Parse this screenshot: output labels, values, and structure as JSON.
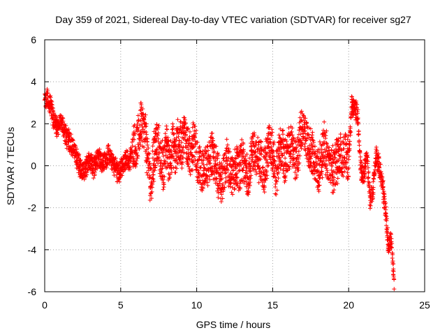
{
  "chart_data": {
    "type": "scatter",
    "title": "Day 359 of 2021, Sidereal Day-to-day VTEC variation (SDTVAR) for receiver sg27",
    "xlabel": "GPS time / hours",
    "ylabel": "SDTVAR / TECUs",
    "xlim": [
      0,
      25
    ],
    "ylim": [
      -6,
      6
    ],
    "xticks": [
      0,
      5,
      10,
      15,
      20,
      25
    ],
    "yticks": [
      -6,
      -4,
      -2,
      0,
      2,
      4,
      6
    ],
    "grid": true,
    "marker": "+",
    "color": "#ff0000",
    "series": [
      {
        "name": "SDTVAR",
        "trend": [
          [
            0.0,
            3.0
          ],
          [
            0.2,
            3.2
          ],
          [
            0.4,
            2.8
          ],
          [
            0.6,
            2.2
          ],
          [
            0.8,
            1.8
          ],
          [
            1.0,
            2.0
          ],
          [
            1.2,
            1.9
          ],
          [
            1.4,
            1.4
          ],
          [
            1.6,
            1.2
          ],
          [
            1.8,
            1.0
          ],
          [
            2.0,
            0.6
          ],
          [
            2.2,
            0.2
          ],
          [
            2.4,
            -0.2
          ],
          [
            2.6,
            -0.3
          ],
          [
            2.8,
            0.0
          ],
          [
            3.0,
            0.2
          ],
          [
            3.2,
            -0.1
          ],
          [
            3.4,
            0.3
          ],
          [
            3.6,
            0.5
          ],
          [
            3.8,
            0.1
          ],
          [
            4.0,
            0.3
          ],
          [
            4.2,
            0.6
          ],
          [
            4.4,
            0.2
          ],
          [
            4.6,
            0.0
          ],
          [
            4.8,
            -0.3
          ],
          [
            5.0,
            -0.2
          ],
          [
            5.2,
            0.1
          ],
          [
            5.4,
            0.4
          ],
          [
            5.6,
            0.2
          ],
          [
            5.8,
            1.0
          ],
          [
            6.0,
            0.8
          ],
          [
            6.2,
            1.4
          ],
          [
            6.4,
            2.2
          ],
          [
            6.6,
            1.5
          ],
          [
            6.8,
            0.2
          ],
          [
            7.0,
            -0.9
          ],
          [
            7.2,
            0.6
          ],
          [
            7.4,
            1.2
          ],
          [
            7.6,
            0.4
          ],
          [
            7.8,
            0.0
          ],
          [
            8.0,
            0.8
          ],
          [
            8.2,
            0.2
          ],
          [
            8.4,
            1.0
          ],
          [
            8.6,
            0.5
          ],
          [
            8.8,
            1.3
          ],
          [
            9.0,
            0.8
          ],
          [
            9.2,
            1.6
          ],
          [
            9.4,
            1.0
          ],
          [
            9.6,
            0.4
          ],
          [
            9.8,
            1.2
          ],
          [
            10.0,
            0.4
          ],
          [
            10.2,
            0.0
          ],
          [
            10.4,
            -0.4
          ],
          [
            10.6,
            0.2
          ],
          [
            10.8,
            0.0
          ],
          [
            11.0,
            0.5
          ],
          [
            11.2,
            0.1
          ],
          [
            11.4,
            -0.6
          ],
          [
            11.6,
            -0.9
          ],
          [
            11.8,
            -0.3
          ],
          [
            12.0,
            0.2
          ],
          [
            12.2,
            -0.2
          ],
          [
            12.4,
            -0.6
          ],
          [
            12.6,
            0.0
          ],
          [
            12.8,
            -0.4
          ],
          [
            13.0,
            0.3
          ],
          [
            13.2,
            -0.1
          ],
          [
            13.4,
            -0.5
          ],
          [
            13.6,
            0.4
          ],
          [
            13.8,
            0.9
          ],
          [
            14.0,
            0.2
          ],
          [
            14.2,
            0.5
          ],
          [
            14.4,
            -0.3
          ],
          [
            14.6,
            0.3
          ],
          [
            14.8,
            1.1
          ],
          [
            15.0,
            0.5
          ],
          [
            15.2,
            -0.6
          ],
          [
            15.4,
            0.4
          ],
          [
            15.6,
            1.0
          ],
          [
            15.8,
            0.1
          ],
          [
            16.0,
            0.5
          ],
          [
            16.2,
            1.2
          ],
          [
            16.4,
            0.6
          ],
          [
            16.6,
            0.2
          ],
          [
            16.8,
            1.4
          ],
          [
            17.0,
            1.8
          ],
          [
            17.2,
            1.3
          ],
          [
            17.4,
            0.8
          ],
          [
            17.6,
            0.5
          ],
          [
            17.8,
            0.2
          ],
          [
            18.0,
            -0.3
          ],
          [
            18.2,
            0.4
          ],
          [
            18.4,
            1.0
          ],
          [
            18.6,
            0.3
          ],
          [
            18.8,
            0.0
          ],
          [
            19.0,
            -0.2
          ],
          [
            19.2,
            0.1
          ],
          [
            19.4,
            0.5
          ],
          [
            19.6,
            0.3
          ],
          [
            19.8,
            0.8
          ],
          [
            20.0,
            0.2
          ],
          [
            20.2,
            3.0
          ],
          [
            20.4,
            2.8
          ],
          [
            20.6,
            2.4
          ],
          [
            20.8,
            -0.3
          ],
          [
            21.0,
            -0.5
          ],
          [
            21.2,
            0.6
          ],
          [
            21.4,
            -1.6
          ],
          [
            21.6,
            -1.2
          ],
          [
            21.8,
            0.5
          ],
          [
            22.0,
            0.0
          ],
          [
            22.2,
            -0.8
          ],
          [
            22.4,
            -2.0
          ],
          [
            22.6,
            -3.8
          ],
          [
            22.8,
            -3.5
          ],
          [
            23.0,
            -5.9
          ]
        ]
      }
    ]
  }
}
